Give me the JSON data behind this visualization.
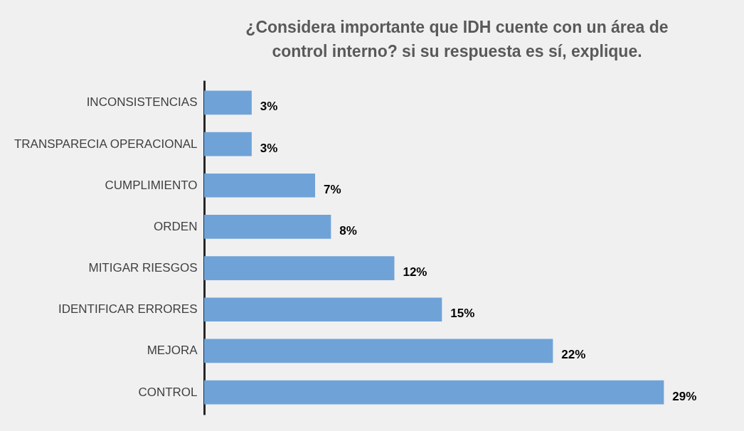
{
  "chart_data": {
    "type": "bar",
    "orientation": "horizontal",
    "title": "¿Considera importante que IDH cuente con un área de control interno?  si su respuesta es sí, explique.",
    "categories": [
      "INCONSISTENCIAS",
      "TRANSPARECIA OPERACIONAL",
      "CUMPLIMIENTO",
      "ORDEN",
      "MITIGAR RIESGOS",
      "IDENTIFICAR ERRORES",
      "MEJORA",
      "CONTROL"
    ],
    "values": [
      3,
      3,
      7,
      8,
      12,
      15,
      22,
      29
    ],
    "value_labels": [
      "3%",
      "3%",
      "7%",
      "8%",
      "12%",
      "15%",
      "22%",
      "29%"
    ],
    "color": "#6fa3d8"
  }
}
